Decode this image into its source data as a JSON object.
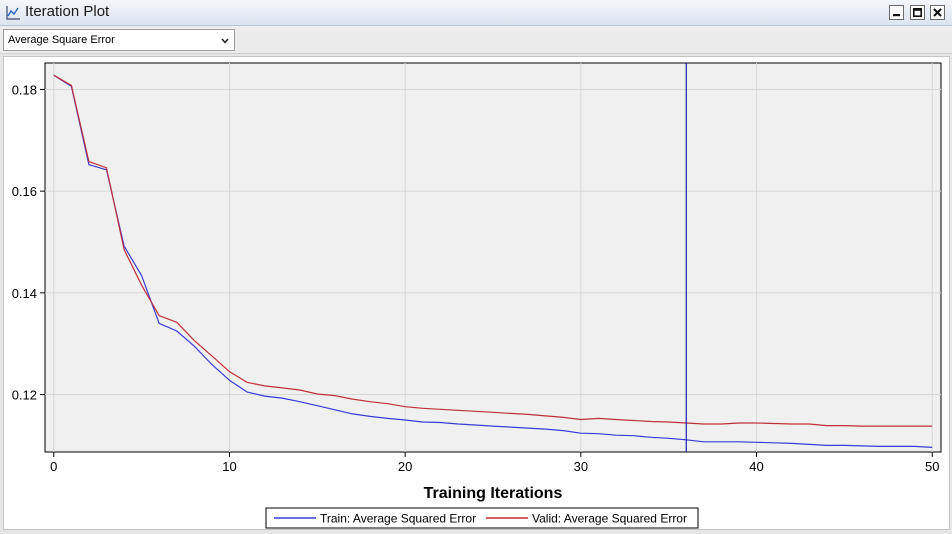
{
  "window": {
    "title": "Iteration Plot",
    "title_icon": "line-chart-icon",
    "buttons": [
      "minimize-icon",
      "maximize-icon",
      "close-icon"
    ]
  },
  "toolbar": {
    "statistic_selected": "Average Square Error"
  },
  "chart_data": {
    "type": "line",
    "title": "",
    "xlabel": "Training Iterations",
    "ylabel": "",
    "xlim": [
      -0.5,
      50.5
    ],
    "ylim": [
      0.1087,
      0.1852
    ],
    "x_ticks": [
      0,
      10,
      20,
      30,
      40,
      50
    ],
    "y_ticks": [
      0.12,
      0.14,
      0.16,
      0.18
    ],
    "y_tick_labels": [
      "0.12",
      "0.14",
      "0.16",
      "0.18"
    ],
    "x_tick_labels": [
      "0",
      "10",
      "20",
      "30",
      "40",
      "50"
    ],
    "grid": true,
    "legend_position": "bottom-center",
    "selected_iteration": 36,
    "reference_line_color": "#1c1ca8",
    "x": [
      0,
      1,
      2,
      3,
      4,
      5,
      6,
      7,
      8,
      9,
      10,
      11,
      12,
      13,
      14,
      15,
      16,
      17,
      18,
      19,
      20,
      21,
      22,
      23,
      24,
      25,
      26,
      27,
      28,
      29,
      30,
      31,
      32,
      33,
      34,
      35,
      36,
      37,
      38,
      39,
      40,
      41,
      42,
      43,
      44,
      45,
      46,
      47,
      48,
      49,
      50
    ],
    "series": [
      {
        "name": "Train: Average Squared Error",
        "color": "#3a3ad6",
        "values": [
          0.1828,
          0.1806,
          0.1652,
          0.1642,
          0.1492,
          0.1434,
          0.134,
          0.1325,
          0.1295,
          0.1259,
          0.1228,
          0.1205,
          0.1197,
          0.1193,
          0.1186,
          0.1178,
          0.117,
          0.1162,
          0.1157,
          0.1153,
          0.115,
          0.1146,
          0.1145,
          0.1142,
          0.114,
          0.1138,
          0.1136,
          0.1134,
          0.1132,
          0.1129,
          0.1124,
          0.1123,
          0.112,
          0.1119,
          0.1116,
          0.1114,
          0.1111,
          0.1107,
          0.1107,
          0.1107,
          0.1106,
          0.1105,
          0.1104,
          0.1102,
          0.11,
          0.11,
          0.1099,
          0.1098,
          0.1098,
          0.1098,
          0.1096
        ]
      },
      {
        "name": "Valid: Average Squared Error",
        "color": "#c0303a",
        "values": [
          0.1828,
          0.1808,
          0.1658,
          0.1646,
          0.1485,
          0.1415,
          0.1355,
          0.1342,
          0.1306,
          0.1276,
          0.1245,
          0.1224,
          0.1217,
          0.1213,
          0.1209,
          0.1201,
          0.1198,
          0.1191,
          0.1186,
          0.1182,
          0.1176,
          0.1173,
          0.1171,
          0.1169,
          0.1167,
          0.1165,
          0.1163,
          0.1161,
          0.1158,
          0.1155,
          0.1151,
          0.1153,
          0.1151,
          0.1149,
          0.1147,
          0.1146,
          0.1144,
          0.1142,
          0.1142,
          0.1144,
          0.1144,
          0.1143,
          0.1142,
          0.1142,
          0.1139,
          0.1139,
          0.1138,
          0.1138,
          0.1138,
          0.1138,
          0.1138
        ]
      }
    ]
  }
}
